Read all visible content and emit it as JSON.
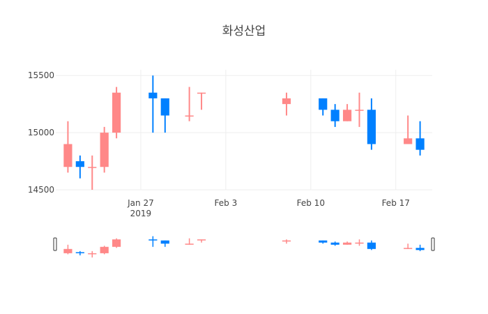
{
  "chart_data": {
    "type": "candlestick",
    "title": "화성산업",
    "xlabel": "",
    "ylabel": "",
    "ylim": [
      14500,
      15550
    ],
    "y_ticks": [
      14500,
      15000,
      15500
    ],
    "x_range": [
      "2019-01-20",
      "2019-02-20"
    ],
    "x_ticks": [
      {
        "date": "2019-01-27",
        "label": "Jan 27",
        "sublabel": "2019"
      },
      {
        "date": "2019-02-03",
        "label": "Feb 3",
        "sublabel": ""
      },
      {
        "date": "2019-02-10",
        "label": "Feb 10",
        "sublabel": ""
      },
      {
        "date": "2019-02-17",
        "label": "Feb 17",
        "sublabel": ""
      }
    ],
    "increasing_color": "#FF8888",
    "decreasing_color": "#0080FF",
    "range_slider": true,
    "candles": [
      {
        "date": "2019-01-21",
        "open": 14700,
        "high": 15100,
        "low": 14650,
        "close": 14900
      },
      {
        "date": "2019-01-22",
        "open": 14750,
        "high": 14800,
        "low": 14600,
        "close": 14700
      },
      {
        "date": "2019-01-23",
        "open": 14700,
        "high": 14800,
        "low": 14500,
        "close": 14700
      },
      {
        "date": "2019-01-24",
        "open": 14700,
        "high": 15050,
        "low": 14650,
        "close": 15000
      },
      {
        "date": "2019-01-25",
        "open": 15000,
        "high": 15400,
        "low": 14950,
        "close": 15350
      },
      {
        "date": "2019-01-28",
        "open": 15350,
        "high": 15500,
        "low": 15000,
        "close": 15300
      },
      {
        "date": "2019-01-29",
        "open": 15300,
        "high": 15300,
        "low": 15000,
        "close": 15150
      },
      {
        "date": "2019-01-31",
        "open": 15150,
        "high": 15400,
        "low": 15100,
        "close": 15150
      },
      {
        "date": "2019-02-01",
        "open": 15350,
        "high": 15350,
        "low": 15200,
        "close": 15350
      },
      {
        "date": "2019-02-08",
        "open": 15250,
        "high": 15350,
        "low": 15150,
        "close": 15300
      },
      {
        "date": "2019-02-11",
        "open": 15300,
        "high": 15300,
        "low": 15150,
        "close": 15200
      },
      {
        "date": "2019-02-12",
        "open": 15200,
        "high": 15250,
        "low": 15050,
        "close": 15100
      },
      {
        "date": "2019-02-13",
        "open": 15100,
        "high": 15250,
        "low": 15100,
        "close": 15200
      },
      {
        "date": "2019-02-14",
        "open": 15200,
        "high": 15350,
        "low": 15050,
        "close": 15200
      },
      {
        "date": "2019-02-15",
        "open": 15200,
        "high": 15300,
        "low": 14850,
        "close": 14900
      },
      {
        "date": "2019-02-18",
        "open": 14900,
        "high": 15150,
        "low": 14900,
        "close": 14950
      },
      {
        "date": "2019-02-19",
        "open": 14950,
        "high": 15100,
        "low": 14800,
        "close": 14850
      }
    ]
  }
}
